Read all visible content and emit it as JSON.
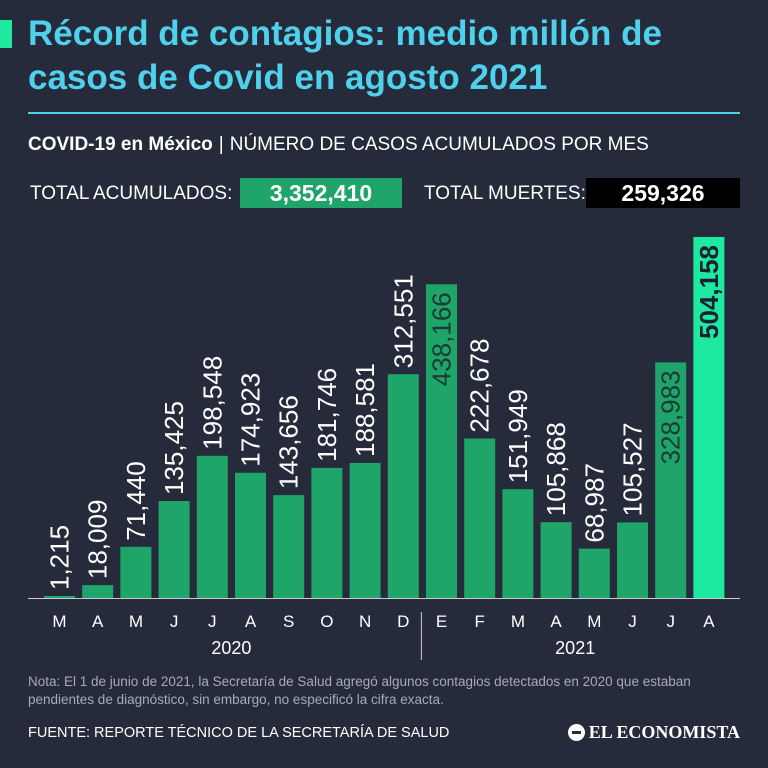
{
  "header": {
    "title": "Récord de contagios: medio millón de casos de Covid en agosto 2021",
    "subtitle_bold": "COVID-19 en México",
    "subtitle_sep": "|",
    "subtitle_rest": "NÚMERO DE CASOS ACUMULADOS POR MES"
  },
  "totals": {
    "cases_label": "TOTAL ACUMULADOS:",
    "cases_value": "3,352,410",
    "deaths_label": "TOTAL MUERTES:",
    "deaths_value": "259,326"
  },
  "chart_data": {
    "type": "bar",
    "categories": [
      "M",
      "A",
      "M",
      "J",
      "J",
      "A",
      "S",
      "O",
      "N",
      "D",
      "E",
      "F",
      "M",
      "A",
      "M",
      "J",
      "J",
      "A"
    ],
    "values": [
      1215,
      18009,
      71440,
      135425,
      198548,
      174923,
      143656,
      181746,
      188581,
      312551,
      438166,
      222678,
      151949,
      105868,
      68987,
      105527,
      328983,
      504158
    ],
    "value_labels": [
      "1,215",
      "18,009",
      "71,440",
      "135,425",
      "198,548",
      "174,923",
      "143,656",
      "181,746",
      "188,581",
      "312,551",
      "438,166",
      "222,678",
      "151,949",
      "105,868",
      "68,987",
      "105,527",
      "328,983",
      "504,158"
    ],
    "groups": [
      {
        "label": "2020",
        "from": 0,
        "to": 9
      },
      {
        "label": "2021",
        "from": 10,
        "to": 17
      }
    ],
    "ylim": [
      0,
      504158
    ],
    "title": "",
    "xlabel": "",
    "ylabel": ""
  },
  "colors": {
    "background": "#262b3c",
    "bar": "#1fa56a",
    "bar_highlight": "#1de9a0",
    "title": "#4fd1ec",
    "deaths_box": "#000000",
    "cases_box": "#1fa56a"
  },
  "footer": {
    "note": "Nota: El 1 de junio de 2021, la Secretaría de Salud agregó algunos contagios detectados en 2020 que estaban pendientes de diagnóstico, sin embargo, no especificó la cifra exacta.",
    "source": "FUENTE: REPORTE TÉCNICO DE LA SECRETARÍA DE SALUD",
    "brand": "EL ECONOMISTA"
  }
}
